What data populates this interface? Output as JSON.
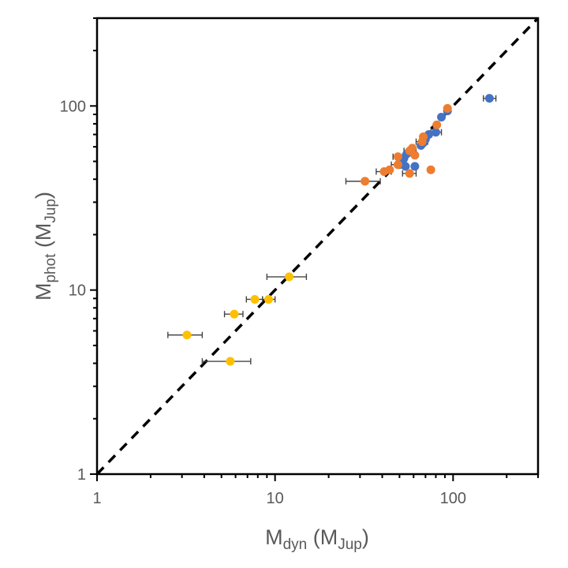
{
  "chart_data": {
    "type": "scatter",
    "title": "",
    "xscale": "log",
    "yscale": "log",
    "xlim": [
      1,
      300
    ],
    "ylim": [
      1,
      300
    ],
    "xlabel": {
      "main": "M",
      "sub": "dyn",
      "unit_open": " (M",
      "unit_sub": "Jup",
      "unit_close": ")"
    },
    "ylabel": {
      "main": "M",
      "sub": "phot",
      "unit_open": " (M",
      "unit_sub": "Jup",
      "unit_close": ")"
    },
    "x_tick_labels": [
      "1",
      "10",
      "100"
    ],
    "y_tick_labels": [
      "1",
      "10",
      "100"
    ],
    "reference_line": {
      "style": "dashed",
      "color": "#000000",
      "points": [
        [
          1,
          1
        ],
        [
          300,
          300
        ]
      ]
    },
    "legend": "none",
    "grid": false,
    "series": [
      {
        "name": "blue",
        "color": "#4472C4",
        "points": [
          {
            "x": 160,
            "y": 110,
            "xerr": [
              148,
              174
            ]
          },
          {
            "x": 93,
            "y": 94
          },
          {
            "x": 86,
            "y": 87
          },
          {
            "x": 80,
            "y": 72,
            "xerr": [
              75,
              86
            ]
          },
          {
            "x": 73,
            "y": 70
          },
          {
            "x": 70,
            "y": 66
          },
          {
            "x": 68,
            "y": 63
          },
          {
            "x": 66,
            "y": 61
          },
          {
            "x": 58,
            "y": 57
          },
          {
            "x": 55,
            "y": 55
          },
          {
            "x": 53,
            "y": 52
          },
          {
            "x": 52,
            "y": 50
          },
          {
            "x": 54,
            "y": 47
          },
          {
            "x": 61,
            "y": 47
          },
          {
            "x": 50,
            "y": 48
          }
        ]
      },
      {
        "name": "orange",
        "color": "#ED7D31",
        "points": [
          {
            "x": 93,
            "y": 97
          },
          {
            "x": 81,
            "y": 79
          },
          {
            "x": 68,
            "y": 68
          },
          {
            "x": 67,
            "y": 64,
            "xerr": [
              62,
              72
            ]
          },
          {
            "x": 59,
            "y": 59
          },
          {
            "x": 57,
            "y": 57,
            "xerr": [
              53,
              62
            ]
          },
          {
            "x": 61,
            "y": 54
          },
          {
            "x": 49,
            "y": 53,
            "xerr": [
              46,
              52
            ]
          },
          {
            "x": 49,
            "y": 48,
            "xerr": [
              45,
              52
            ]
          },
          {
            "x": 44,
            "y": 45
          },
          {
            "x": 41,
            "y": 44,
            "xerr": [
              37,
              45
            ]
          },
          {
            "x": 57,
            "y": 43,
            "xerr": [
              52,
              62
            ]
          },
          {
            "x": 75,
            "y": 45
          },
          {
            "x": 32,
            "y": 39,
            "xerr": [
              25,
              39
            ]
          }
        ]
      },
      {
        "name": "yellow",
        "color": "#FFC000",
        "points": [
          {
            "x": 12,
            "y": 11.8,
            "xerr": [
              9,
              15
            ]
          },
          {
            "x": 9.2,
            "y": 8.9,
            "xerr": [
              8.5,
              10
            ]
          },
          {
            "x": 7.7,
            "y": 8.9,
            "xerr": [
              6.9,
              8.5
            ]
          },
          {
            "x": 5.9,
            "y": 7.4,
            "xerr": [
              5.2,
              6.6
            ]
          },
          {
            "x": 3.2,
            "y": 5.7,
            "xerr": [
              2.5,
              3.9
            ]
          },
          {
            "x": 5.6,
            "y": 4.1,
            "xerr": [
              3.9,
              7.3
            ]
          }
        ]
      }
    ]
  }
}
